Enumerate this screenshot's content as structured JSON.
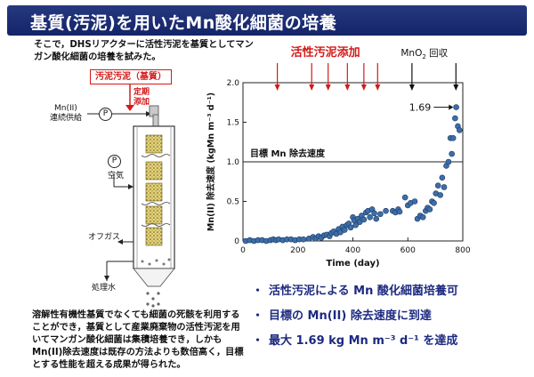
{
  "header": {
    "title": "基質(汚泥)を用いたMn酸化細菌の培養"
  },
  "intro_lines": [
    "そこで，DHSリアクターに活性汚泥を基質としてマン",
    "ガン酸化細菌の培養を試みた。"
  ],
  "diagram": {
    "sludge_box": "汚泥汚泥（基質）",
    "scheduled_line1": "定期",
    "scheduled_line2": "添加",
    "mn_feed_line1": "Mn(II)",
    "mn_feed_line2": "連続供給",
    "pump_symbol": "P",
    "air": "空気",
    "offgas": "オフガス",
    "treated_water": "処理水"
  },
  "caption_lines": [
    "溶解性有機性基質でなくても細菌の死骸を利用する",
    "ことができ，基質として産業廃棄物の活性汚泥を用",
    "いてマンガン酸化細菌は集積培養でき，しかも",
    "Mn(II)除去速度は既存の方法よりも数倍高く，目標",
    "とする性能を超える成果が得られた。"
  ],
  "bullets": [
    {
      "mark": "・",
      "text": "活性汚泥による Mn 酸化細菌培養可"
    },
    {
      "mark": "・",
      "text": "目標の Mn(II) 除去速度に到達"
    },
    {
      "mark": "・",
      "text": "最大 1.69 kg Mn m⁻³ d⁻¹ を達成"
    }
  ],
  "colors": {
    "banner": "#1f2f78",
    "accent_red": "#d31a1a",
    "bullet_text": "#1d2a80",
    "marker": "#3d6ea8"
  },
  "chart_data": {
    "type": "scatter",
    "title": "",
    "xlabel": "Time (day)",
    "ylabel": "Mn(II) 除去速度 (kgMn m⁻³ d⁻¹)",
    "xlim": [
      0,
      800
    ],
    "ylim": [
      0,
      2.0
    ],
    "xticks": [
      "0",
      "200",
      "400",
      "600",
      "800"
    ],
    "yticks": [
      "0",
      "0.5",
      "1.0",
      "1.5",
      "2.0"
    ],
    "grid": false,
    "target_line": {
      "value": 1.0,
      "label": "目標 Mn 除去速度"
    },
    "annotation": {
      "text": "1.69",
      "x": 775,
      "y": 1.69
    },
    "sludge_addition": {
      "label": "活性汚泥添加",
      "days": [
        125,
        250,
        310,
        380,
        440,
        490
      ]
    },
    "mno2_recovery": {
      "label_main": "MnO",
      "label_sub": "2",
      "label_tail": " 回収",
      "days": [
        615,
        775
      ]
    },
    "series": [
      {
        "points": [
          [
            10,
            0.0
          ],
          [
            25,
            0.01
          ],
          [
            40,
            0.0
          ],
          [
            55,
            0.01
          ],
          [
            70,
            0.01
          ],
          [
            85,
            0.0
          ],
          [
            100,
            0.01
          ],
          [
            110,
            0.02
          ],
          [
            120,
            0.01
          ],
          [
            130,
            0.02
          ],
          [
            145,
            0.01
          ],
          [
            160,
            0.02
          ],
          [
            175,
            0.02
          ],
          [
            190,
            0.01
          ],
          [
            205,
            0.02
          ],
          [
            220,
            0.02
          ],
          [
            240,
            0.03
          ],
          [
            255,
            0.05
          ],
          [
            265,
            0.03
          ],
          [
            275,
            0.06
          ],
          [
            285,
            0.04
          ],
          [
            295,
            0.07
          ],
          [
            305,
            0.08
          ],
          [
            315,
            0.06
          ],
          [
            322,
            0.1
          ],
          [
            330,
            0.12
          ],
          [
            340,
            0.09
          ],
          [
            348,
            0.15
          ],
          [
            355,
            0.11
          ],
          [
            362,
            0.18
          ],
          [
            370,
            0.14
          ],
          [
            378,
            0.2
          ],
          [
            385,
            0.22
          ],
          [
            392,
            0.17
          ],
          [
            400,
            0.3
          ],
          [
            405,
            0.26
          ],
          [
            410,
            0.2
          ],
          [
            418,
            0.28
          ],
          [
            425,
            0.24
          ],
          [
            432,
            0.32
          ],
          [
            440,
            0.27
          ],
          [
            448,
            0.36
          ],
          [
            455,
            0.38
          ],
          [
            462,
            0.3
          ],
          [
            470,
            0.4
          ],
          [
            478,
            0.35
          ],
          [
            485,
            0.28
          ],
          [
            500,
            0.34
          ],
          [
            520,
            0.38
          ],
          [
            545,
            0.38
          ],
          [
            555,
            0.36
          ],
          [
            565,
            0.4
          ],
          [
            570,
            0.37
          ],
          [
            590,
            0.55
          ],
          [
            600,
            0.45
          ],
          [
            610,
            0.48
          ],
          [
            625,
            0.5
          ],
          [
            635,
            0.28
          ],
          [
            645,
            0.32
          ],
          [
            655,
            0.3
          ],
          [
            665,
            0.38
          ],
          [
            672,
            0.42
          ],
          [
            680,
            0.4
          ],
          [
            688,
            0.5
          ],
          [
            695,
            0.48
          ],
          [
            702,
            0.6
          ],
          [
            710,
            0.7
          ],
          [
            718,
            0.58
          ],
          [
            725,
            0.8
          ],
          [
            732,
            0.68
          ],
          [
            740,
            0.95
          ],
          [
            748,
            1.0
          ],
          [
            755,
            1.3
          ],
          [
            760,
            1.1
          ],
          [
            765,
            1.3
          ],
          [
            772,
            1.55
          ],
          [
            776,
            1.69
          ],
          [
            782,
            1.45
          ],
          [
            788,
            1.4
          ]
        ]
      }
    ]
  }
}
